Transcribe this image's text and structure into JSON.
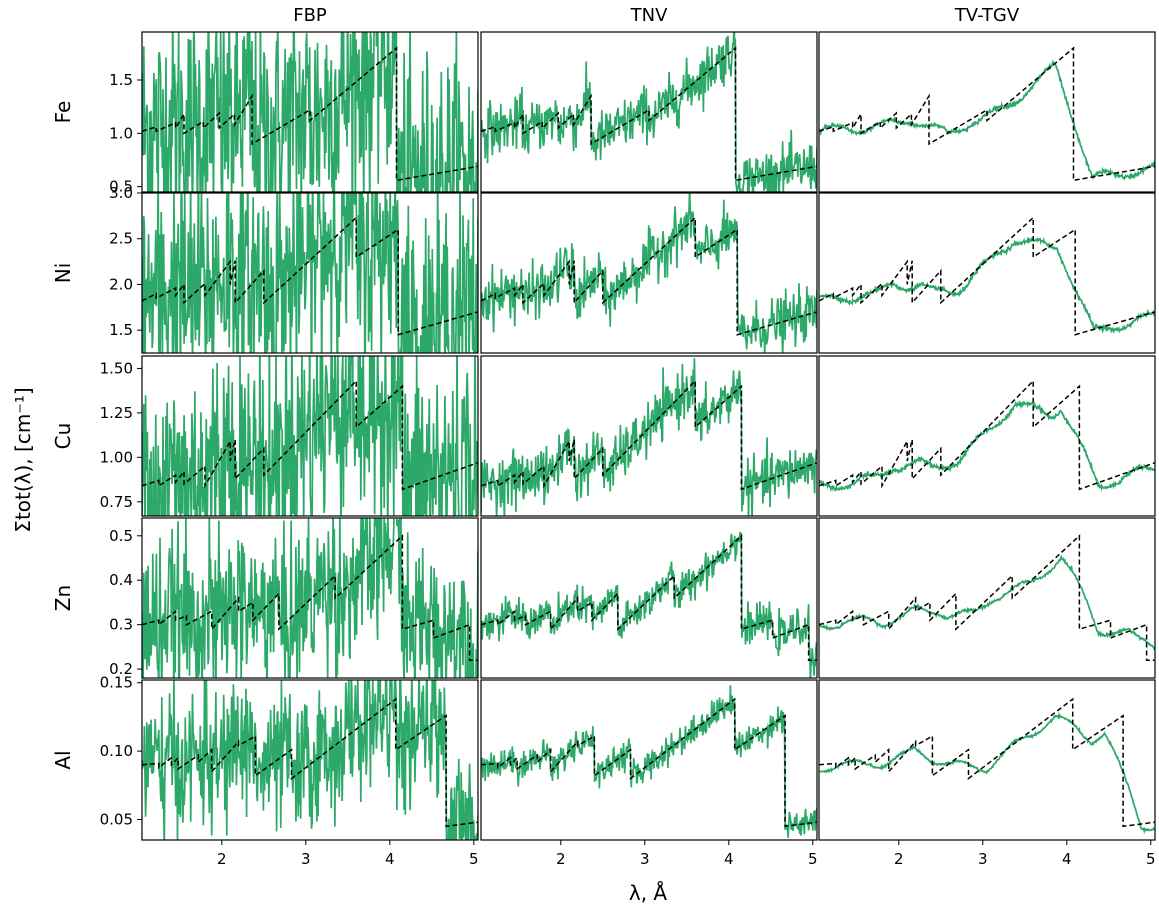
{
  "figure": {
    "ylabel": "Σtot(λ), [cm⁻¹]",
    "xlabel": "λ, Å",
    "columns": [
      "FBP",
      "TNV",
      "TV-TGV"
    ],
    "rows": [
      "Fe",
      "Ni",
      "Cu",
      "Zn",
      "Al"
    ]
  },
  "chart_data": {
    "type": "line",
    "grid": false,
    "legend": "none",
    "colors": {
      "reconstruction": "#2ca868",
      "reference": "#000000"
    },
    "x_ticks": [
      2,
      3,
      4,
      5
    ],
    "xlim": [
      1.05,
      5.05
    ],
    "panels": [
      {
        "row": "Fe",
        "ylim": [
          0.45,
          1.95
        ],
        "y_ticks": [
          0.5,
          1.0,
          1.5
        ],
        "edges": [
          {
            "x0": 1.05,
            "y0": 1.02,
            "x1": 1.22,
            "y1": 1.06
          },
          {
            "x0": 1.22,
            "y0": 1.02,
            "x1": 1.45,
            "y1": 1.1
          },
          {
            "x0": 1.45,
            "y0": 1.05,
            "x1": 1.55,
            "y1": 1.18
          },
          {
            "x0": 1.55,
            "y0": 1.0,
            "x1": 1.78,
            "y1": 1.11
          },
          {
            "x0": 1.78,
            "y0": 1.05,
            "x1": 1.97,
            "y1": 1.19
          },
          {
            "x0": 1.97,
            "y0": 1.05,
            "x1": 2.15,
            "y1": 1.18
          },
          {
            "x0": 2.15,
            "y0": 1.08,
            "x1": 2.36,
            "y1": 1.35
          },
          {
            "x0": 2.36,
            "y0": 0.9,
            "x1": 3.05,
            "y1": 1.22
          },
          {
            "x0": 3.05,
            "y0": 1.12,
            "x1": 4.08,
            "y1": 1.8
          },
          {
            "x0": 4.08,
            "y0": 0.56,
            "x1": 5.05,
            "y1": 0.69
          }
        ]
      },
      {
        "row": "Ni",
        "ylim": [
          1.25,
          3.0
        ],
        "y_ticks": [
          1.5,
          2.0,
          2.5,
          3.0
        ],
        "edges": [
          {
            "x0": 1.05,
            "y0": 1.82,
            "x1": 1.22,
            "y1": 1.9
          },
          {
            "x0": 1.22,
            "y0": 1.85,
            "x1": 1.45,
            "y1": 1.96
          },
          {
            "x0": 1.45,
            "y0": 1.88,
            "x1": 1.55,
            "y1": 2.0
          },
          {
            "x0": 1.55,
            "y0": 1.8,
            "x1": 1.8,
            "y1": 2.01
          },
          {
            "x0": 1.8,
            "y0": 1.88,
            "x1": 2.1,
            "y1": 2.25
          },
          {
            "x0": 2.1,
            "y0": 2.0,
            "x1": 2.16,
            "y1": 2.26
          },
          {
            "x0": 2.16,
            "y0": 1.8,
            "x1": 2.5,
            "y1": 2.15
          },
          {
            "x0": 2.5,
            "y0": 1.8,
            "x1": 3.6,
            "y1": 2.73
          },
          {
            "x0": 3.6,
            "y0": 2.3,
            "x1": 4.1,
            "y1": 2.6
          },
          {
            "x0": 4.1,
            "y0": 1.45,
            "x1": 5.05,
            "y1": 1.7
          }
        ]
      },
      {
        "row": "Cu",
        "ylim": [
          0.67,
          1.57
        ],
        "y_ticks": [
          0.75,
          1.0,
          1.25,
          1.5
        ],
        "edges": [
          {
            "x0": 1.05,
            "y0": 0.84,
            "x1": 1.25,
            "y1": 0.87
          },
          {
            "x0": 1.25,
            "y0": 0.84,
            "x1": 1.45,
            "y1": 0.9
          },
          {
            "x0": 1.45,
            "y0": 0.86,
            "x1": 1.55,
            "y1": 0.92
          },
          {
            "x0": 1.55,
            "y0": 0.85,
            "x1": 1.8,
            "y1": 0.95
          },
          {
            "x0": 1.8,
            "y0": 0.84,
            "x1": 2.1,
            "y1": 1.09
          },
          {
            "x0": 2.1,
            "y0": 0.98,
            "x1": 2.16,
            "y1": 1.1
          },
          {
            "x0": 2.16,
            "y0": 0.88,
            "x1": 2.5,
            "y1": 1.05
          },
          {
            "x0": 2.5,
            "y0": 0.9,
            "x1": 3.6,
            "y1": 1.43
          },
          {
            "x0": 3.6,
            "y0": 1.17,
            "x1": 4.15,
            "y1": 1.4
          },
          {
            "x0": 4.15,
            "y0": 0.82,
            "x1": 5.05,
            "y1": 0.97
          }
        ]
      },
      {
        "row": "Zn",
        "ylim": [
          0.18,
          0.54
        ],
        "y_ticks": [
          0.2,
          0.3,
          0.4,
          0.5
        ],
        "edges": [
          {
            "x0": 1.05,
            "y0": 0.3,
            "x1": 1.25,
            "y1": 0.31
          },
          {
            "x0": 1.25,
            "y0": 0.3,
            "x1": 1.45,
            "y1": 0.33
          },
          {
            "x0": 1.45,
            "y0": 0.31,
            "x1": 1.58,
            "y1": 0.32
          },
          {
            "x0": 1.58,
            "y0": 0.3,
            "x1": 1.88,
            "y1": 0.33
          },
          {
            "x0": 1.88,
            "y0": 0.29,
            "x1": 2.2,
            "y1": 0.36
          },
          {
            "x0": 2.2,
            "y0": 0.33,
            "x1": 2.37,
            "y1": 0.35
          },
          {
            "x0": 2.37,
            "y0": 0.31,
            "x1": 2.68,
            "y1": 0.37
          },
          {
            "x0": 2.68,
            "y0": 0.29,
            "x1": 3.35,
            "y1": 0.41
          },
          {
            "x0": 3.35,
            "y0": 0.36,
            "x1": 4.15,
            "y1": 0.5
          },
          {
            "x0": 4.15,
            "y0": 0.29,
            "x1": 4.52,
            "y1": 0.31
          },
          {
            "x0": 4.52,
            "y0": 0.27,
            "x1": 4.95,
            "y1": 0.3
          },
          {
            "x0": 4.95,
            "y0": 0.22,
            "x1": 5.05,
            "y1": 0.22
          }
        ]
      },
      {
        "row": "Al",
        "ylim": [
          0.035,
          0.152
        ],
        "y_ticks": [
          0.05,
          0.1,
          0.15
        ],
        "edges": [
          {
            "x0": 1.05,
            "y0": 0.09,
            "x1": 1.25,
            "y1": 0.091
          },
          {
            "x0": 1.25,
            "y0": 0.088,
            "x1": 1.4,
            "y1": 0.095
          },
          {
            "x0": 1.4,
            "y0": 0.09,
            "x1": 1.48,
            "y1": 0.095
          },
          {
            "x0": 1.48,
            "y0": 0.087,
            "x1": 1.72,
            "y1": 0.097
          },
          {
            "x0": 1.72,
            "y0": 0.092,
            "x1": 1.88,
            "y1": 0.101
          },
          {
            "x0": 1.88,
            "y0": 0.085,
            "x1": 2.2,
            "y1": 0.107
          },
          {
            "x0": 2.2,
            "y0": 0.104,
            "x1": 2.4,
            "y1": 0.111
          },
          {
            "x0": 2.4,
            "y0": 0.082,
            "x1": 2.83,
            "y1": 0.101
          },
          {
            "x0": 2.83,
            "y0": 0.08,
            "x1": 4.07,
            "y1": 0.138
          },
          {
            "x0": 4.07,
            "y0": 0.101,
            "x1": 4.67,
            "y1": 0.126
          },
          {
            "x0": 4.67,
            "y0": 0.045,
            "x1": 5.05,
            "y1": 0.048
          }
        ]
      }
    ],
    "methods": [
      {
        "column": "FBP",
        "noise": 4.2,
        "smooth": 1,
        "bias": 0
      },
      {
        "column": "TNV",
        "noise": 0.9,
        "smooth": 1,
        "bias": 0
      },
      {
        "column": "TV-TGV",
        "noise": 0.12,
        "smooth": 30,
        "bias": 0.02
      }
    ],
    "noise_scale": {
      "Fe": 0.09,
      "Ni": 0.09,
      "Cu": 0.09,
      "Zn": 0.06,
      "Al": 0.05
    }
  }
}
